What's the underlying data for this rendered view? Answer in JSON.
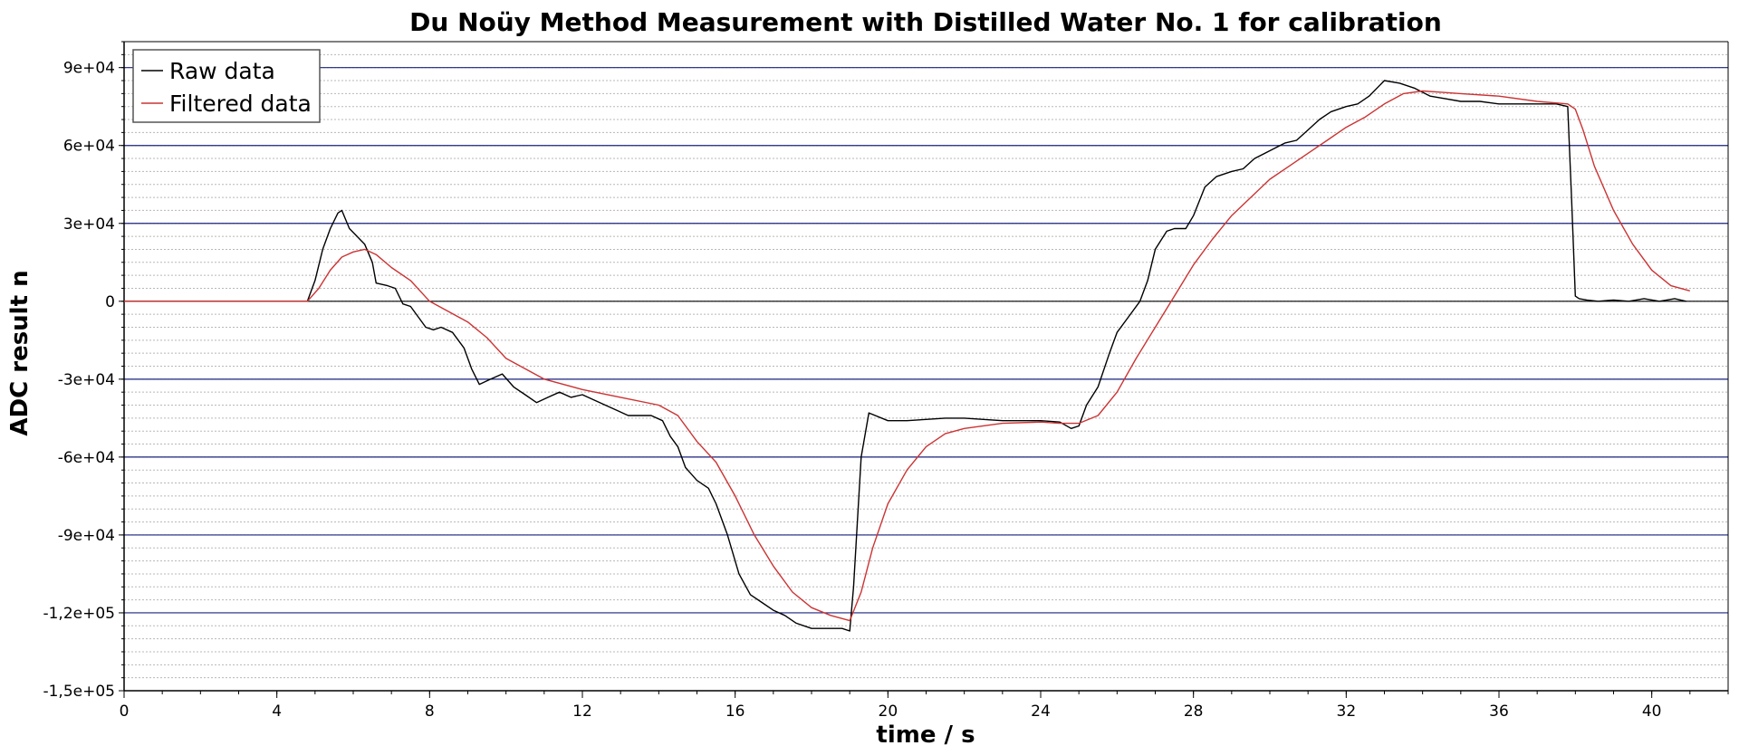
{
  "chart_data": {
    "type": "line",
    "title": "Du Noüy Method Measurement with Distilled Water No. 1 for calibration",
    "xlabel": "time / s",
    "ylabel": "ADC result n",
    "xlim": [
      0,
      42
    ],
    "ylim": [
      -150000,
      100000
    ],
    "x_ticks": [
      0,
      4,
      8,
      12,
      16,
      20,
      24,
      28,
      32,
      36,
      40
    ],
    "x_tick_labels": [
      "0",
      "4",
      "8",
      "12",
      "16",
      "20",
      "24",
      "28",
      "32",
      "36",
      "40"
    ],
    "y_ticks": [
      90000,
      60000,
      30000,
      0,
      -30000,
      -60000,
      -90000,
      -120000,
      -150000
    ],
    "y_tick_labels": [
      "9e+04",
      "6e+04",
      "3e+04",
      "0",
      "-3e+04",
      "-6e+04",
      "-9e+04",
      "-1,2e+05",
      "-1,5e+05"
    ],
    "grid": true,
    "legend_position": "top-left",
    "series": [
      {
        "name": "Raw data",
        "color": "#000000",
        "x": [
          0,
          1,
          2,
          3,
          4,
          4.8,
          5.0,
          5.2,
          5.4,
          5.6,
          5.7,
          5.9,
          6.1,
          6.3,
          6.5,
          6.6,
          6.9,
          7.1,
          7.3,
          7.5,
          7.7,
          7.9,
          8.1,
          8.3,
          8.6,
          8.9,
          9.1,
          9.3,
          9.6,
          9.9,
          10.2,
          10.5,
          10.8,
          11.1,
          11.4,
          11.7,
          12.0,
          12.3,
          12.6,
          12.9,
          13.2,
          13.5,
          13.8,
          14.1,
          14.3,
          14.5,
          14.7,
          15.0,
          15.3,
          15.5,
          15.8,
          16.1,
          16.4,
          16.7,
          17.0,
          17.3,
          17.6,
          18.0,
          18.4,
          18.8,
          19.0,
          19.1,
          19.3,
          19.5,
          20.0,
          20.5,
          21.0,
          21.5,
          22.0,
          22.5,
          23.0,
          23.5,
          24.0,
          24.5,
          24.8,
          25.0,
          25.2,
          25.5,
          25.8,
          26.0,
          26.3,
          26.6,
          26.8,
          27.0,
          27.3,
          27.5,
          27.8,
          28.0,
          28.3,
          28.6,
          29.0,
          29.3,
          29.6,
          30.0,
          30.4,
          30.7,
          31.0,
          31.3,
          31.6,
          32.0,
          32.3,
          32.6,
          33.0,
          33.4,
          33.8,
          34.2,
          34.6,
          35.0,
          35.5,
          36.0,
          36.5,
          37.0,
          37.5,
          37.8,
          37.9,
          38.0,
          38.1,
          38.3,
          38.6,
          39.0,
          39.4,
          39.8,
          40.2,
          40.6,
          40.9
        ],
        "y": [
          0,
          0,
          0,
          0,
          0,
          0,
          8000,
          20000,
          28000,
          34000,
          35000,
          28000,
          25000,
          22000,
          15000,
          7000,
          6000,
          5000,
          -1000,
          -2000,
          -6000,
          -10000,
          -11000,
          -10000,
          -12000,
          -18000,
          -26000,
          -32000,
          -30000,
          -28000,
          -33000,
          -36000,
          -39000,
          -37000,
          -35000,
          -37000,
          -36000,
          -38000,
          -40000,
          -42000,
          -44000,
          -44000,
          -44000,
          -46000,
          -52000,
          -56000,
          -64000,
          -69000,
          -72000,
          -78000,
          -90000,
          -105000,
          -113000,
          -116000,
          -119000,
          -121000,
          -124000,
          -126000,
          -126000,
          -126000,
          -127000,
          -110000,
          -60000,
          -43000,
          -46000,
          -46000,
          -45500,
          -45000,
          -45000,
          -45500,
          -46000,
          -46000,
          -46000,
          -46500,
          -49000,
          -48000,
          -40000,
          -33000,
          -20000,
          -12000,
          -6000,
          0,
          8000,
          20000,
          27000,
          28000,
          28000,
          33000,
          44000,
          48000,
          50000,
          51000,
          55000,
          58000,
          61000,
          62000,
          66000,
          70000,
          73000,
          75000,
          76000,
          79000,
          85000,
          84000,
          82000,
          79000,
          78000,
          77000,
          77000,
          76000,
          76000,
          76000,
          76000,
          75000,
          40000,
          2000,
          1000,
          500,
          0,
          500,
          0,
          1000,
          0,
          1000,
          0
        ]
      },
      {
        "name": "Filtered data",
        "color": "#cc3333",
        "x": [
          0,
          1,
          2,
          3,
          4,
          4.8,
          5.1,
          5.4,
          5.7,
          6.0,
          6.3,
          6.6,
          7.0,
          7.5,
          8.0,
          8.5,
          9.0,
          9.5,
          10.0,
          11.0,
          12.0,
          13.0,
          14.0,
          14.5,
          15.0,
          15.5,
          16.0,
          16.5,
          17.0,
          17.5,
          18.0,
          18.5,
          19.0,
          19.3,
          19.6,
          20.0,
          20.5,
          21.0,
          21.5,
          22.0,
          23.0,
          24.0,
          24.5,
          25.0,
          25.5,
          26.0,
          26.5,
          27.0,
          27.5,
          28.0,
          28.5,
          29.0,
          29.5,
          30.0,
          30.5,
          31.0,
          31.5,
          32.0,
          32.5,
          33.0,
          33.5,
          34.0,
          34.5,
          35.0,
          36.0,
          37.0,
          37.8,
          38.0,
          38.2,
          38.5,
          39.0,
          39.5,
          40.0,
          40.5,
          41.0
        ],
        "y": [
          0,
          0,
          0,
          0,
          0,
          0,
          5000,
          12000,
          17000,
          19000,
          20000,
          18000,
          13000,
          8000,
          0,
          -4000,
          -8000,
          -14000,
          -22000,
          -30000,
          -34000,
          -37000,
          -40000,
          -44000,
          -54000,
          -62000,
          -75000,
          -90000,
          -102000,
          -112000,
          -118000,
          -121000,
          -123000,
          -112000,
          -95000,
          -78000,
          -65000,
          -56000,
          -51000,
          -49000,
          -47000,
          -46500,
          -47000,
          -47000,
          -44000,
          -35000,
          -22000,
          -10000,
          2000,
          14000,
          24000,
          33000,
          40000,
          47000,
          52000,
          57000,
          62000,
          67000,
          71000,
          76000,
          80000,
          81000,
          80500,
          80000,
          79000,
          77000,
          76000,
          74000,
          66000,
          52000,
          35000,
          22000,
          12000,
          6000,
          4000
        ]
      }
    ]
  }
}
